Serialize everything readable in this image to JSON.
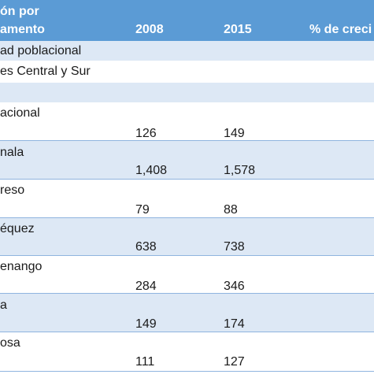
{
  "table": {
    "header": {
      "col1_line1": "ón por",
      "col1_line2": "amento",
      "col2": "2008",
      "col3": "2015",
      "col4": "% de creci"
    },
    "section_rows": [
      {
        "label": "ad poblacional"
      },
      {
        "label": "es Central y Sur"
      },
      {
        "label": ""
      }
    ],
    "data_rows": [
      {
        "label": "acional",
        "v2008": "126",
        "v2015": "149"
      },
      {
        "label": "nala",
        "v2008": "1,408",
        "v2015": "1,578"
      },
      {
        "label": "reso",
        "v2008": "79",
        "v2015": "88"
      },
      {
        "label": "équez",
        "v2008": "638",
        "v2015": "738"
      },
      {
        "label": "enango",
        "v2008": "284",
        "v2015": "346"
      },
      {
        "label": "a",
        "v2008": "149",
        "v2015": "174"
      },
      {
        "label": "osa",
        "v2008": "111",
        "v2015": "127"
      }
    ]
  }
}
